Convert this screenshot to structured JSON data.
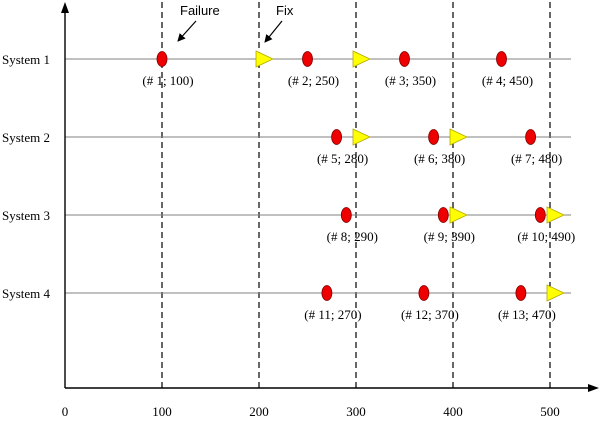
{
  "systems": [
    {
      "label": "System 1",
      "failures": [
        {
          "label": "(# 1; 100)",
          "time": 100
        },
        {
          "label": "(# 2; 250)",
          "time": 250
        },
        {
          "label": "(# 3; 350)",
          "time": 350
        },
        {
          "label": "(# 4; 450)",
          "time": 450
        }
      ],
      "fixes": [
        200,
        300
      ]
    },
    {
      "label": "System 2",
      "failures": [
        {
          "label": "(# 5; 280)",
          "time": 280
        },
        {
          "label": "(# 6; 380)",
          "time": 380
        },
        {
          "label": "(# 7; 480)",
          "time": 480
        }
      ],
      "fixes": [
        300,
        400
      ]
    },
    {
      "label": "System 3",
      "failures": [
        {
          "label": "(# 8; 290)",
          "time": 290
        },
        {
          "label": "(# 9; 390)",
          "time": 390
        },
        {
          "label": "(# 10; 490)",
          "time": 490
        }
      ],
      "fixes": [
        400,
        500
      ]
    },
    {
      "label": "System 4",
      "failures": [
        {
          "label": "(# 11; 270)",
          "time": 270
        },
        {
          "label": "(# 12; 370)",
          "time": 370
        },
        {
          "label": "(# 13; 470)",
          "time": 470
        }
      ],
      "fixes": [
        500
      ]
    }
  ],
  "x_ticks": [
    0,
    100,
    200,
    300,
    400,
    500
  ],
  "fix_times": [
    100,
    200,
    300,
    400,
    500
  ],
  "annotations": {
    "failure": "Failure",
    "fix": "Fix"
  },
  "colors": {
    "failure": "#ee0000",
    "fix": "#ffff00",
    "axis": "#000000",
    "system_line": "#808080"
  }
}
